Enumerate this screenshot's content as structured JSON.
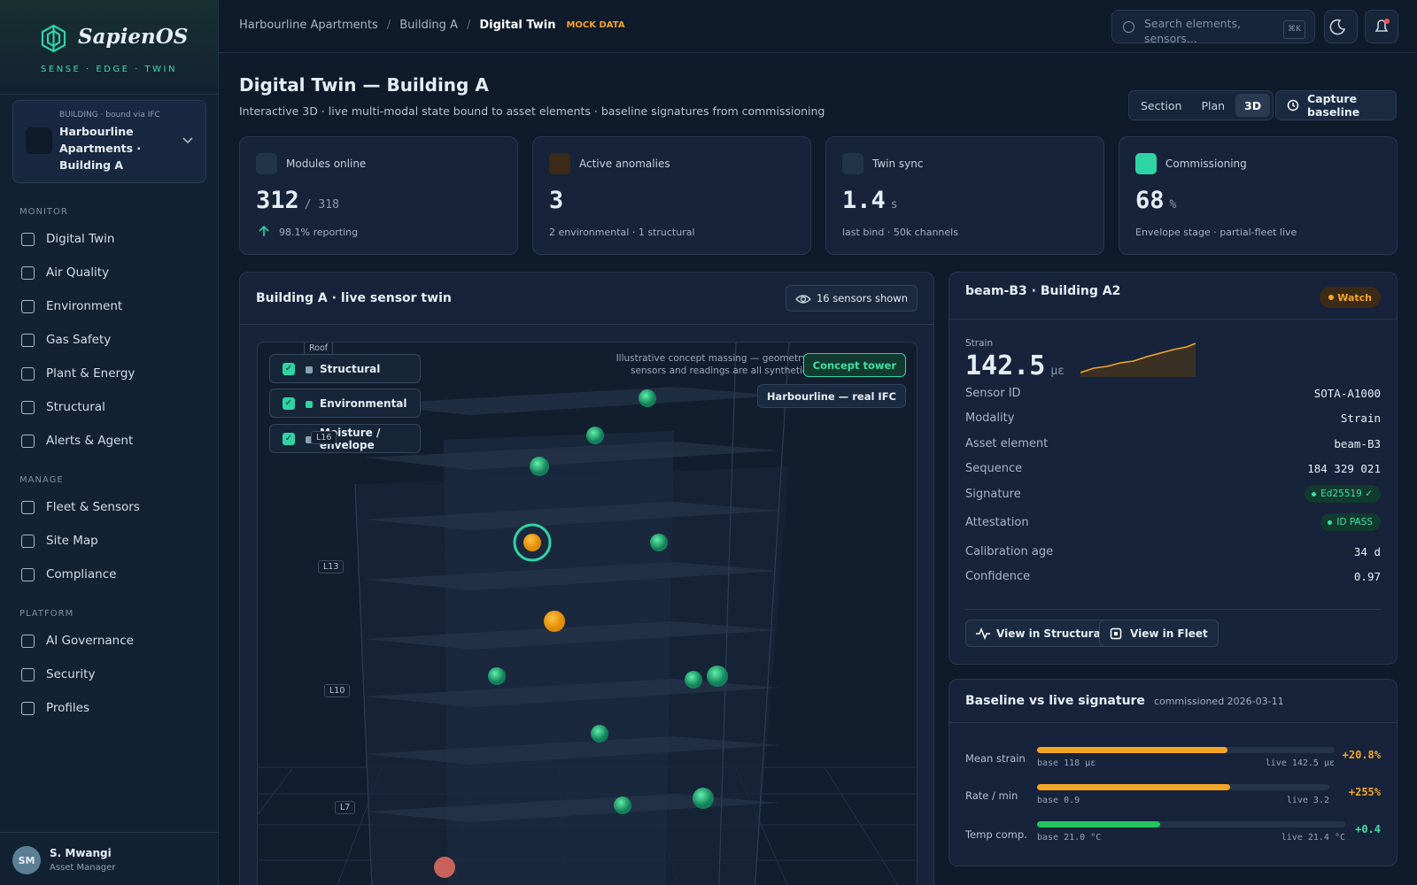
{
  "sidebar": {
    "brand": "SapienOS",
    "tagline": "SENSE · EDGE · TWIN",
    "building": {
      "kicker": "BUILDING · bound via IFC",
      "name": "Harbourline Apartments · Building A"
    },
    "sections": [
      {
        "title": "MONITOR",
        "items": [
          "Digital Twin",
          "Air Quality",
          "Environment",
          "Gas Safety",
          "Plant & Energy",
          "Structural",
          "Alerts & Agent"
        ]
      },
      {
        "title": "MANAGE",
        "items": [
          "Fleet & Sensors",
          "Site Map",
          "Compliance"
        ]
      },
      {
        "title": "PLATFORM",
        "items": [
          "AI Governance",
          "Security",
          "Profiles"
        ]
      }
    ],
    "user": {
      "initials": "SM",
      "name": "S. Mwangi",
      "role": "Asset Manager"
    }
  },
  "topbar": {
    "breadcrumbs": [
      "Harbourline Apartments",
      "Building A",
      "Digital Twin"
    ],
    "badge": "MOCK DATA",
    "search_placeholder": "Search elements, sensors...",
    "shortcut": "⌘K"
  },
  "header": {
    "title": "Digital Twin — Building A",
    "subtitle": "Interactive 3D · live multi-modal state bound to asset elements · baseline signatures from commissioning",
    "view_modes": [
      "Section",
      "Plan",
      "3D"
    ],
    "capture": "Capture baseline"
  },
  "kpis": [
    {
      "label": "Modules online",
      "value": "312",
      "unit": "/ 318",
      "note": "98.1% reporting"
    },
    {
      "label": "Active anomalies",
      "value": "3",
      "unit": "",
      "note": "2 environmental · 1 structural"
    },
    {
      "label": "Twin sync",
      "value": "1.4",
      "unit": "s",
      "note": "last bind · 50k channels"
    },
    {
      "label": "Commissioning",
      "value": "68",
      "unit": "%",
      "note": "Envelope stage · partial-fleet live"
    }
  ],
  "twin": {
    "title": "Building A · live sensor twin",
    "sensors_shown": "16 sensors shown",
    "layers": [
      "Structural",
      "Environmental",
      "Moisture / envelope"
    ],
    "note": "Illustrative concept massing — geometry, sensors and readings are all synthetic.",
    "models": [
      "Concept tower",
      "Harbourline — real IFC"
    ],
    "levels": [
      "Roof",
      "L16",
      "L13",
      "L10",
      "L7"
    ]
  },
  "detail": {
    "title": "beam-B3 · Building A2",
    "status": "Watch",
    "reading_label": "Strain",
    "reading_value": "142.5",
    "reading_unit": "µε",
    "fields": [
      {
        "label": "Sensor ID",
        "value": "SOTA-A1000"
      },
      {
        "label": "Modality",
        "value": "Strain"
      },
      {
        "label": "Asset element",
        "value": "beam-B3"
      },
      {
        "label": "Sequence",
        "value": "184 329 021"
      },
      {
        "label": "Signature",
        "value": "Ed25519 ✓"
      },
      {
        "label": "Attestation",
        "value": "ID PASS"
      },
      {
        "label": "Calibration age",
        "value": "34 d"
      },
      {
        "label": "Confidence",
        "value": "0.97"
      }
    ],
    "actions": [
      "View in Structural",
      "View in Fleet"
    ]
  },
  "baseline": {
    "title": "Baseline vs live signature",
    "note": "commissioned 2026-03-11",
    "rows": [
      {
        "label": "Mean strain",
        "base": "base 118 µε",
        "live": "live 142.5 µε",
        "delta": "+20.8%"
      },
      {
        "label": "Rate / min",
        "base": "base 0.9",
        "live": "live 3.2",
        "delta": "+255%"
      },
      {
        "label": "Temp comp.",
        "base": "base 21.0 °C",
        "live": "live 21.4 °C",
        "delta": "+0.4"
      }
    ]
  }
}
